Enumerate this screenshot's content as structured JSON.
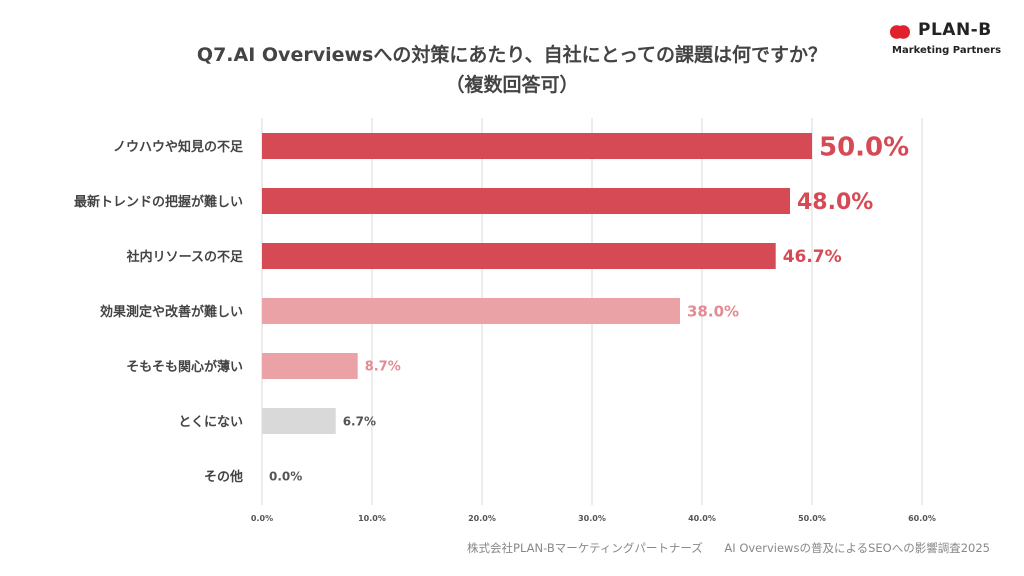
{
  "title": {
    "line1": "Q7.AI Overviewsへの対策にあたり、自社にとっての課題は何ですか？",
    "line2": "（複数回答可）"
  },
  "logo": {
    "name": "PLAN-B",
    "tagline": "Marketing Partners",
    "brand_color": "#e0202c"
  },
  "footer": {
    "company": "株式会社PLAN-Bマーケティングパートナーズ",
    "survey": "AI Overviewsの普及によるSEOへの影響調査2025"
  },
  "chart_data": {
    "type": "bar",
    "orientation": "horizontal",
    "title": "Q7.AI Overviewsへの対策にあたり、自社にとっての課題は何ですか？（複数回答可）",
    "categories": [
      "ノウハウや知見の不足",
      "最新トレンドの把握が難しい",
      "社内リソースの不足",
      "効果測定や改善が難しい",
      "そもそも関心が薄い",
      "とくにない",
      "その他"
    ],
    "values": [
      50.0,
      48.0,
      46.7,
      38.0,
      8.7,
      6.7,
      0.0
    ],
    "value_labels": [
      "50.0%",
      "48.0%",
      "46.7%",
      "38.0%",
      "8.7%",
      "6.7%",
      "0.0%"
    ],
    "bar_colors": [
      "#d64a55",
      "#d64a55",
      "#d64a55",
      "#eba2a7",
      "#eba2a7",
      "#d9d9d9",
      "#d9d9d9"
    ],
    "label_colors": [
      "#d64a55",
      "#d64a55",
      "#d64a55",
      "#e38b92",
      "#e38b92",
      "#555555",
      "#555555"
    ],
    "xlim": [
      0,
      60
    ],
    "xticks": [
      0,
      10,
      20,
      30,
      40,
      50,
      60
    ],
    "xtick_labels": [
      "0.0%",
      "10.0%",
      "20.0%",
      "30.0%",
      "40.0%",
      "50.0%",
      "60.0%"
    ],
    "grid": true,
    "legend": "none"
  }
}
